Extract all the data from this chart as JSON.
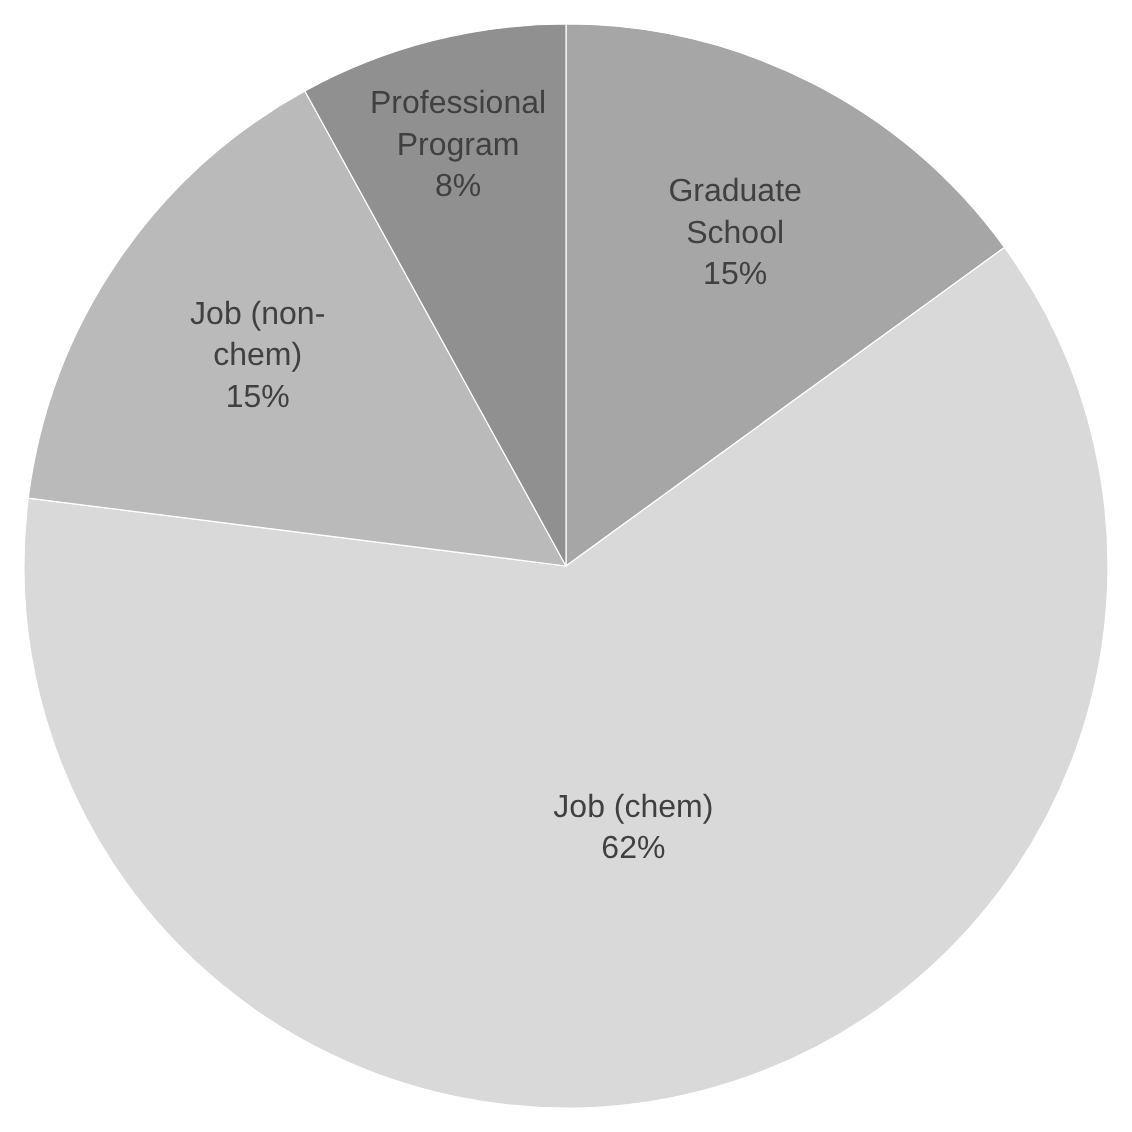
{
  "chart_data": {
    "type": "pie",
    "categories": [
      "Graduate School",
      "Job (chem)",
      "Job (non-chem)",
      "Professional Program"
    ],
    "values": [
      15,
      62,
      15,
      8
    ],
    "value_labels": [
      "15%",
      "62%",
      "15%",
      "8%"
    ],
    "colors": [
      "#a6a6a6",
      "#d9d9d9",
      "#bababa",
      "#909090"
    ],
    "legend": false
  }
}
